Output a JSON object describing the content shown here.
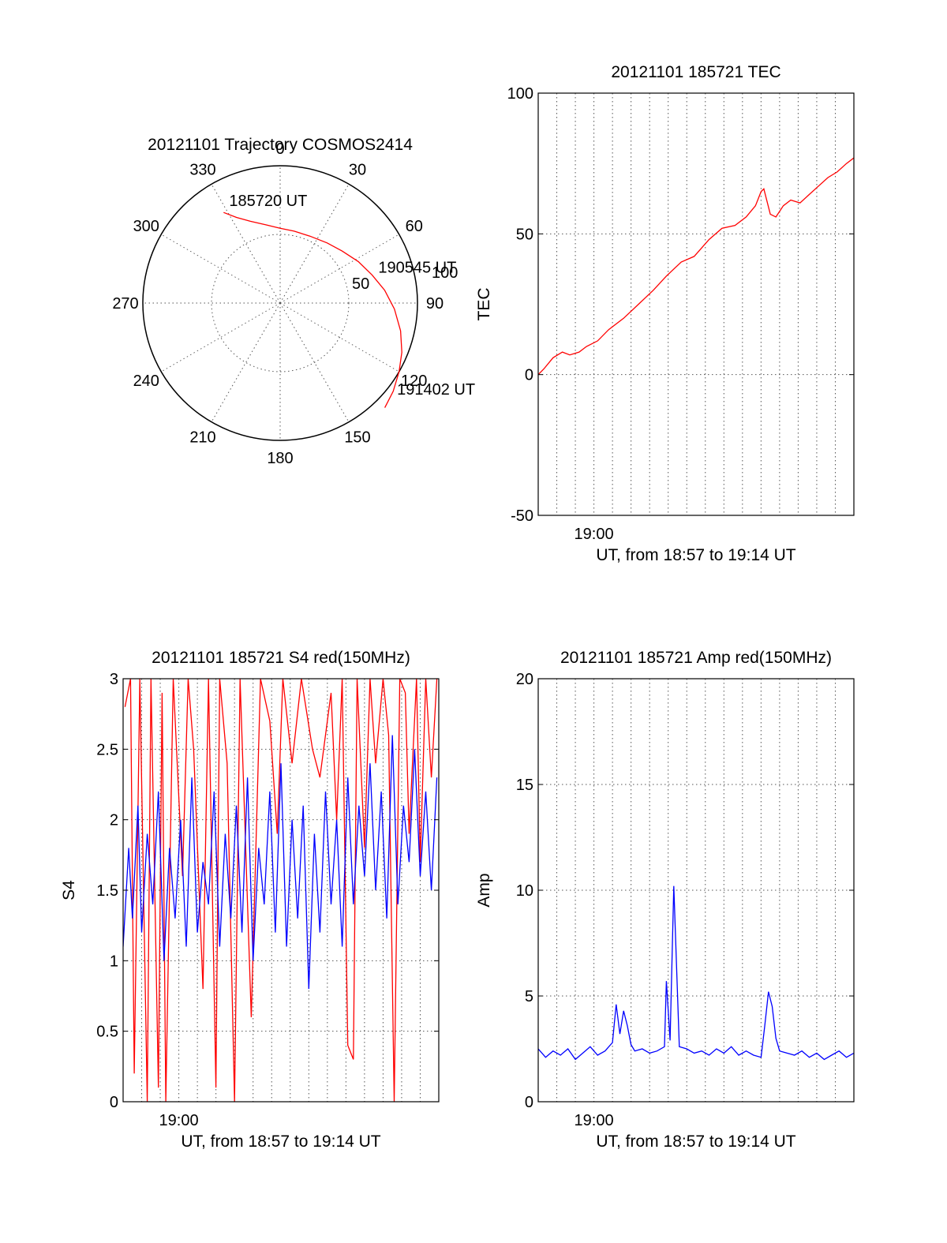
{
  "chart_data": [
    {
      "type": "polar",
      "title": "20121101 Trajectory COSMOS2414",
      "angle_ticks": [
        0,
        30,
        60,
        90,
        120,
        150,
        180,
        210,
        240,
        270,
        300,
        330
      ],
      "radial_ticks": [
        50,
        100
      ],
      "series": [
        {
          "color": "#ff0000",
          "points": [
            {
              "azimuth": 328,
              "elevation": 20
            },
            {
              "azimuth": 333,
              "elevation": 27
            },
            {
              "azimuth": 340,
              "elevation": 33
            },
            {
              "azimuth": 350,
              "elevation": 38
            },
            {
              "azimuth": 0,
              "elevation": 41
            },
            {
              "azimuth": 11,
              "elevation": 42
            },
            {
              "azimuth": 24,
              "elevation": 42
            },
            {
              "azimuth": 38,
              "elevation": 40
            },
            {
              "azimuth": 50,
              "elevation": 37
            },
            {
              "azimuth": 62,
              "elevation": 32
            },
            {
              "azimuth": 73,
              "elevation": 27
            },
            {
              "azimuth": 83,
              "elevation": 21
            },
            {
              "azimuth": 93,
              "elevation": 15
            },
            {
              "azimuth": 103,
              "elevation": 9
            },
            {
              "azimuth": 112,
              "elevation": 4
            },
            {
              "azimuth": 120,
              "elevation": 0
            },
            {
              "azimuth": 128,
              "elevation": -4
            },
            {
              "azimuth": 135,
              "elevation": -7
            }
          ]
        }
      ],
      "annotations": [
        {
          "text": "185720 UT",
          "azimuth": 330,
          "elevation": 20
        },
        {
          "text": "190545 UT",
          "azimuth": 75,
          "elevation": 25
        },
        {
          "text": "191402 UT",
          "azimuth": 130,
          "elevation": -8
        }
      ]
    },
    {
      "type": "line",
      "title": "20121101 185721 TEC",
      "ylabel": "TEC",
      "xlabel": "UT, from 18:57 to 19:14 UT",
      "xlim": [
        0,
        17
      ],
      "ylim": [
        -50,
        100
      ],
      "yticks": [
        -50,
        0,
        50,
        100
      ],
      "xticks": [
        {
          "value": 3,
          "label": "19:00"
        }
      ],
      "grid": true,
      "series": [
        {
          "color": "#ff0000",
          "x": [
            0,
            0.3,
            0.8,
            1.3,
            1.7,
            2.2,
            2.6,
            3.2,
            3.8,
            4.6,
            5.4,
            6.2,
            6.9,
            7.7,
            8.4,
            9.2,
            9.9,
            10.6,
            11.2,
            11.7,
            12.0,
            12.15,
            12.5,
            12.8,
            13.2,
            13.6,
            14.1,
            14.6,
            15.1,
            15.6,
            16.1,
            16.6,
            17
          ],
          "y": [
            0,
            2,
            6,
            8,
            7,
            8,
            10,
            12,
            16,
            20,
            25,
            30,
            35,
            40,
            42,
            48,
            52,
            53,
            56,
            60,
            65,
            66,
            57,
            56,
            60,
            62,
            61,
            64,
            67,
            70,
            72,
            75,
            77
          ]
        }
      ]
    },
    {
      "type": "line",
      "title": "20121101 185721 S4 red(150MHz)",
      "ylabel": "S4",
      "xlabel": "UT, from 18:57 to 19:14 UT",
      "xlim": [
        0,
        17
      ],
      "ylim": [
        0,
        3
      ],
      "yticks": [
        0,
        0.5,
        1,
        1.5,
        2,
        2.5,
        3
      ],
      "xticks": [
        {
          "value": 3,
          "label": "19:00"
        }
      ],
      "grid": true,
      "series": [
        {
          "color": "#ff0000",
          "x": [
            0.1,
            0.4,
            0.6,
            0.9,
            1.3,
            1.5,
            1.9,
            2.1,
            2.3,
            2.7,
            3.2,
            3.5,
            3.8,
            4.3,
            4.6,
            5.0,
            5.2,
            5.6,
            6.0,
            6.3,
            6.9,
            7.4,
            7.9,
            8.3,
            8.6,
            9.1,
            9.6,
            10.2,
            10.6,
            11.2,
            11.5,
            11.8,
            12.1,
            12.4,
            12.6,
            13.0,
            13.3,
            13.6,
            14.0,
            14.3,
            14.6,
            14.9,
            15.2,
            15.4,
            15.8,
            16.0,
            16.3,
            16.6,
            16.9
          ],
          "y": [
            2.8,
            3.0,
            0.2,
            3.0,
            0.0,
            3.0,
            0.1,
            2.9,
            0.0,
            3.0,
            1.6,
            3.0,
            2.5,
            0.8,
            3.0,
            0.1,
            3.0,
            2.4,
            0.0,
            3.0,
            0.6,
            3.0,
            2.7,
            1.9,
            3.0,
            2.4,
            3.0,
            2.5,
            2.3,
            2.9,
            2.0,
            3.0,
            0.4,
            0.3,
            3.0,
            1.8,
            3.0,
            2.4,
            3.0,
            2.6,
            0.0,
            3.0,
            2.9,
            1.9,
            3.0,
            1.7,
            3.0,
            2.3,
            3.0
          ]
        },
        {
          "color": "#0000ff",
          "x": [
            0,
            0.3,
            0.5,
            0.8,
            1.0,
            1.3,
            1.6,
            1.9,
            2.2,
            2.5,
            2.8,
            3.1,
            3.4,
            3.7,
            4.0,
            4.3,
            4.6,
            4.9,
            5.2,
            5.5,
            5.8,
            6.1,
            6.4,
            6.7,
            7.0,
            7.3,
            7.6,
            7.9,
            8.2,
            8.5,
            8.8,
            9.1,
            9.4,
            9.7,
            10.0,
            10.3,
            10.6,
            10.9,
            11.2,
            11.5,
            11.8,
            12.1,
            12.4,
            12.7,
            13.0,
            13.3,
            13.6,
            13.9,
            14.2,
            14.5,
            14.8,
            15.1,
            15.4,
            15.7,
            16.0,
            16.3,
            16.6,
            16.9
          ],
          "y": [
            1.1,
            1.8,
            1.3,
            2.1,
            1.2,
            1.9,
            1.4,
            2.2,
            1.0,
            1.8,
            1.3,
            2.0,
            1.1,
            2.3,
            1.2,
            1.7,
            1.4,
            2.2,
            1.1,
            1.9,
            1.3,
            2.1,
            1.2,
            2.3,
            1.0,
            1.8,
            1.4,
            2.2,
            1.2,
            2.4,
            1.1,
            2.0,
            1.3,
            2.1,
            0.8,
            1.9,
            1.2,
            2.2,
            1.4,
            2.0,
            1.1,
            2.3,
            1.4,
            2.1,
            1.6,
            2.4,
            1.5,
            2.2,
            1.3,
            2.6,
            1.4,
            2.1,
            1.7,
            2.5,
            1.6,
            2.2,
            1.5,
            2.3
          ]
        }
      ]
    },
    {
      "type": "line",
      "title": "20121101 185721 Amp red(150MHz)",
      "ylabel": "Amp",
      "xlabel": "UT, from 18:57 to 19:14 UT",
      "xlim": [
        0,
        17
      ],
      "ylim": [
        0,
        20
      ],
      "yticks": [
        0,
        5,
        10,
        15,
        20
      ],
      "xticks": [
        {
          "value": 3,
          "label": "19:00"
        }
      ],
      "grid": true,
      "series": [
        {
          "color": "#0000ff",
          "x": [
            0,
            0.4,
            0.8,
            1.2,
            1.6,
            2.0,
            2.4,
            2.8,
            3.2,
            3.6,
            4.0,
            4.2,
            4.4,
            4.6,
            4.8,
            5.0,
            5.2,
            5.6,
            6.0,
            6.4,
            6.8,
            6.9,
            7.1,
            7.3,
            7.6,
            8.0,
            8.4,
            8.8,
            9.2,
            9.6,
            10.0,
            10.4,
            10.8,
            11.2,
            11.6,
            12.0,
            12.2,
            12.4,
            12.6,
            12.8,
            13.0,
            13.4,
            13.8,
            14.2,
            14.6,
            15.0,
            15.4,
            15.8,
            16.2,
            16.6,
            17.0
          ],
          "y": [
            2.5,
            2.1,
            2.4,
            2.2,
            2.5,
            2.0,
            2.3,
            2.6,
            2.2,
            2.4,
            2.8,
            4.6,
            3.2,
            4.3,
            3.6,
            2.7,
            2.4,
            2.5,
            2.3,
            2.4,
            2.6,
            5.7,
            2.9,
            10.2,
            2.6,
            2.5,
            2.3,
            2.4,
            2.2,
            2.5,
            2.3,
            2.6,
            2.2,
            2.4,
            2.2,
            2.1,
            3.6,
            5.2,
            4.5,
            3.0,
            2.4,
            2.3,
            2.2,
            2.4,
            2.1,
            2.3,
            2.0,
            2.2,
            2.4,
            2.1,
            2.3
          ]
        }
      ]
    }
  ]
}
